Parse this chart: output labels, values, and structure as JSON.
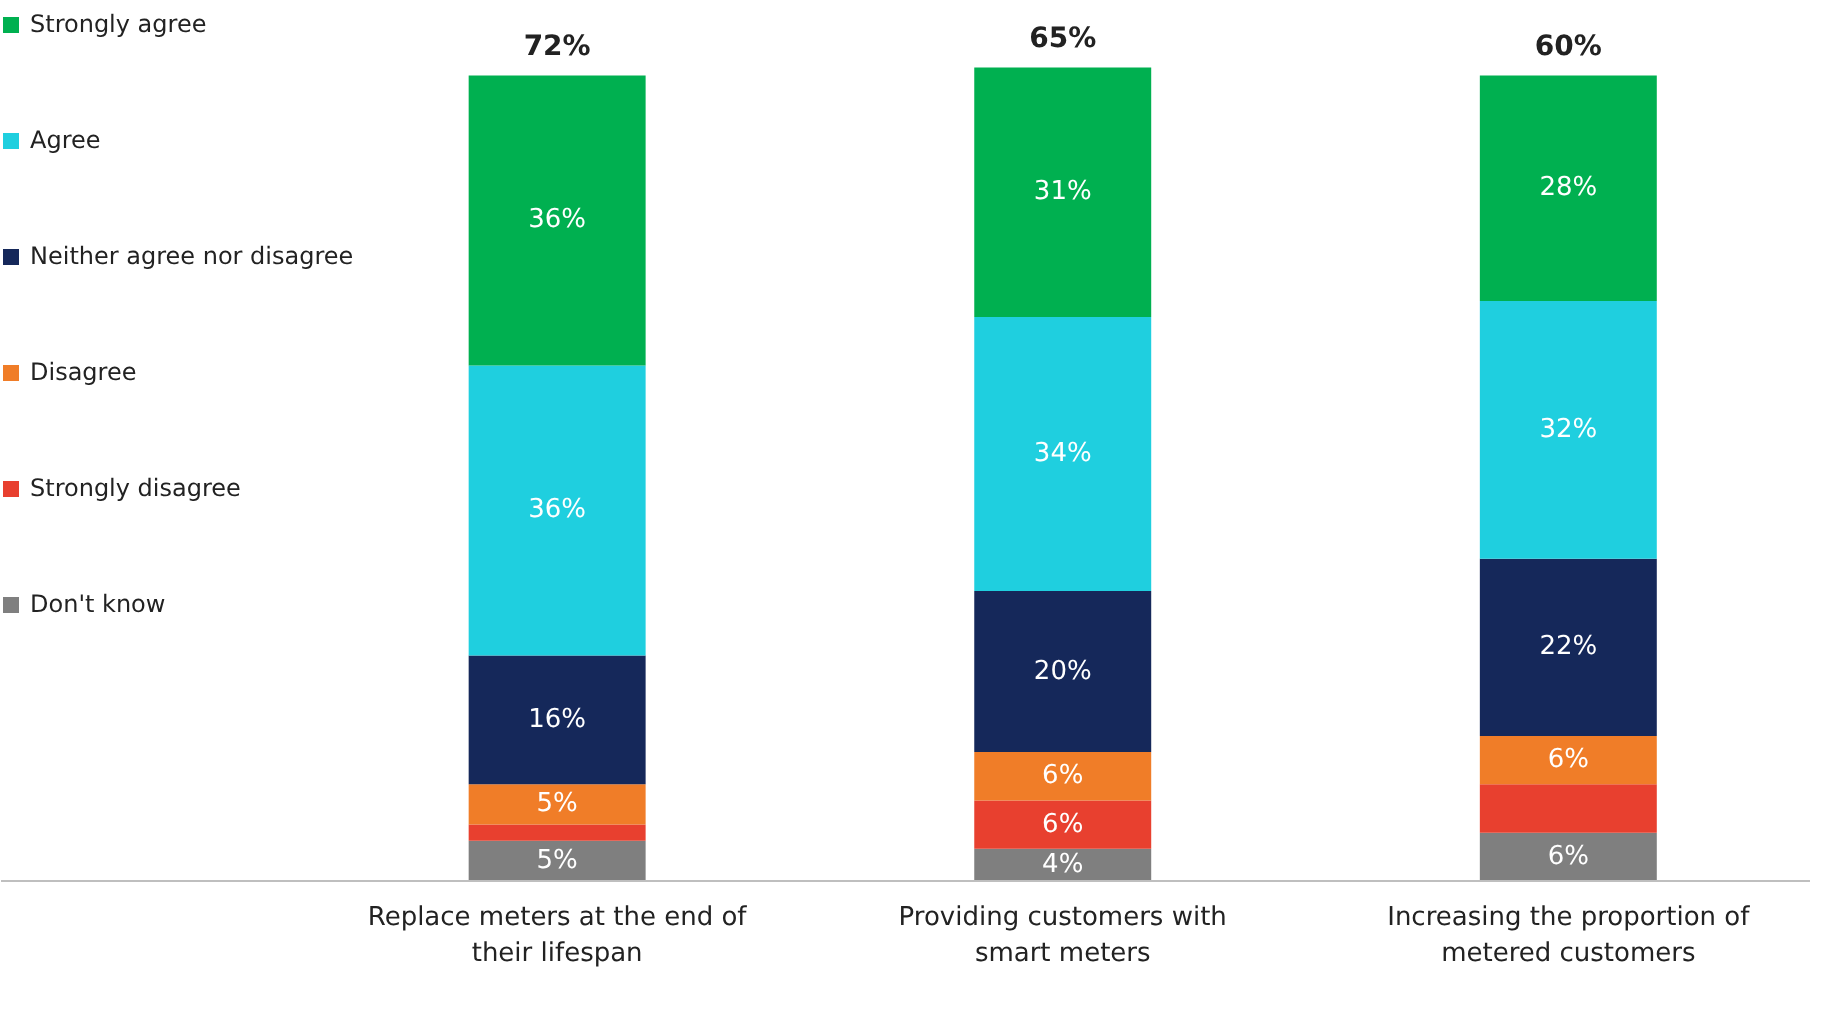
{
  "chart_data": {
    "type": "bar",
    "stacked": true,
    "categories": [
      "Replace meters at the end of their lifespan",
      "Providing customers with smart meters",
      "Increasing the proportion of metered customers"
    ],
    "series": [
      {
        "name": "Don't know",
        "color": "#7f7f7f",
        "values": [
          5,
          4,
          6
        ],
        "value_labels": [
          "5%",
          "4%",
          "6%"
        ]
      },
      {
        "name": "Strongly disagree",
        "color": "#e8402f",
        "values": [
          2,
          6,
          6
        ],
        "value_labels": [
          null,
          "6%",
          null
        ]
      },
      {
        "name": "Disagree",
        "color": "#f07d28",
        "values": [
          5,
          6,
          6
        ],
        "value_labels": [
          "5%",
          "6%",
          "6%"
        ]
      },
      {
        "name": "Neither agree nor disagree",
        "color": "#15285a",
        "values": [
          16,
          20,
          22
        ],
        "value_labels": [
          "16%",
          "20%",
          "22%"
        ]
      },
      {
        "name": "Agree",
        "color": "#1fcfdf",
        "values": [
          36,
          34,
          32
        ],
        "value_labels": [
          "36%",
          "34%",
          "32%"
        ]
      },
      {
        "name": "Strongly agree",
        "color": "#00b050",
        "values": [
          36,
          31,
          28
        ],
        "value_labels": [
          "36%",
          "31%",
          "28%"
        ]
      }
    ],
    "annotations": [
      {
        "text": "72%",
        "x": "Replace meters at the end of their lifespan",
        "y": 100
      },
      {
        "text": "65%",
        "x": "Providing customers with smart meters",
        "y": 101
      },
      {
        "text": "60%",
        "x": "Increasing the proportion of metered customers",
        "y": 100
      }
    ],
    "legend": "left",
    "grid": false
  }
}
